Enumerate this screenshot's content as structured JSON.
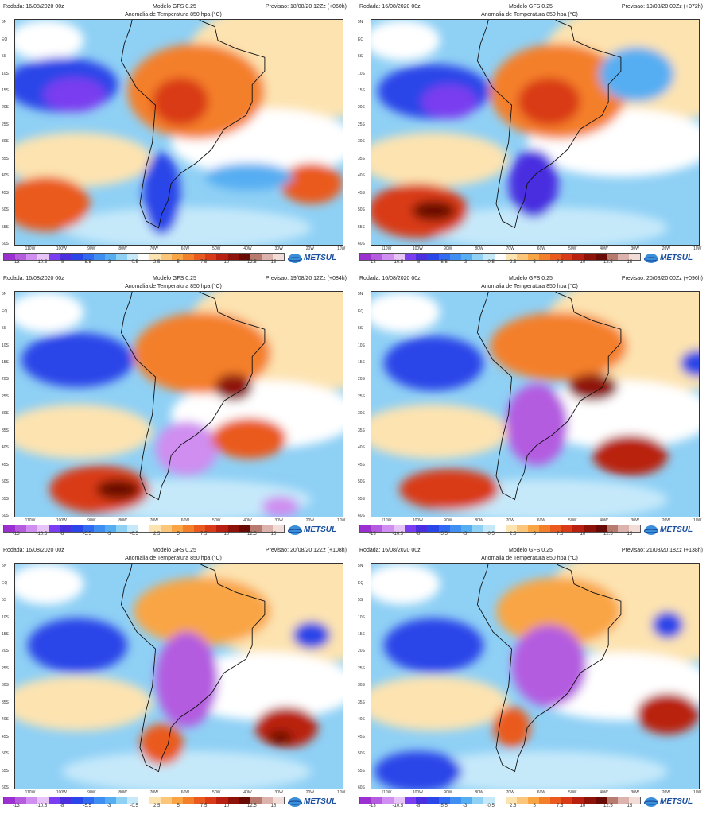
{
  "run_label": "Rodada: 16/08/2020 00z",
  "model_label": "Modelo GFS 0.25",
  "map_title": "Anomalia de Temperatura 850 hpa (°C)",
  "logo_text": "METSUL",
  "panels": [
    {
      "forecast": "Previsao: 18/08/20 12Zz (+060h)"
    },
    {
      "forecast": "Previsao: 19/08/20 00Zz (+072h)"
    },
    {
      "forecast": "Previsao: 19/08/20 12Zz (+084h)"
    },
    {
      "forecast": "Previsao: 20/08/20 00Zz (+096h)"
    },
    {
      "forecast": "Previsao: 20/08/20 12Zz (+108h)"
    },
    {
      "forecast": "Previsao: 21/08/20 18Zz (+138h)"
    }
  ],
  "lat_labels": [
    "5N",
    "EQ",
    "5S",
    "10S",
    "15S",
    "20S",
    "25S",
    "30S",
    "35S",
    "40S",
    "45S",
    "50S",
    "55S",
    "60S"
  ],
  "lon_labels": [
    "110W",
    "100W",
    "90W",
    "80W",
    "70W",
    "60W",
    "50W",
    "40W",
    "30W",
    "20W",
    "10W"
  ],
  "colorbar": {
    "ticks": [
      "-13",
      "-10.5",
      "-8",
      "-5.5",
      "-3",
      "-0.5",
      "2.5",
      "5",
      "7.5",
      "10",
      "12.5",
      "15"
    ],
    "colors": [
      "#9b2fd0",
      "#b45be0",
      "#cf8ef0",
      "#e6c4f7",
      "#7a3df0",
      "#4a2fe0",
      "#2a45e8",
      "#2f6af0",
      "#3f8ff2",
      "#56aef2",
      "#8fd0f5",
      "#c6e9fa",
      "#ffffff",
      "#fde3b0",
      "#fcc67a",
      "#f9a544",
      "#f47f2a",
      "#ea5a1f",
      "#d93a18",
      "#b92010",
      "#8f1208",
      "#6a0a05",
      "#b77a6e",
      "#dcb3ac",
      "#f2dcd8"
    ]
  },
  "map_data": {
    "layer": "Anomalia de Temperatura 850 hpa",
    "units": "°C",
    "region": "South America and adjacent oceans, 5N-60S, 115W-10W"
  }
}
